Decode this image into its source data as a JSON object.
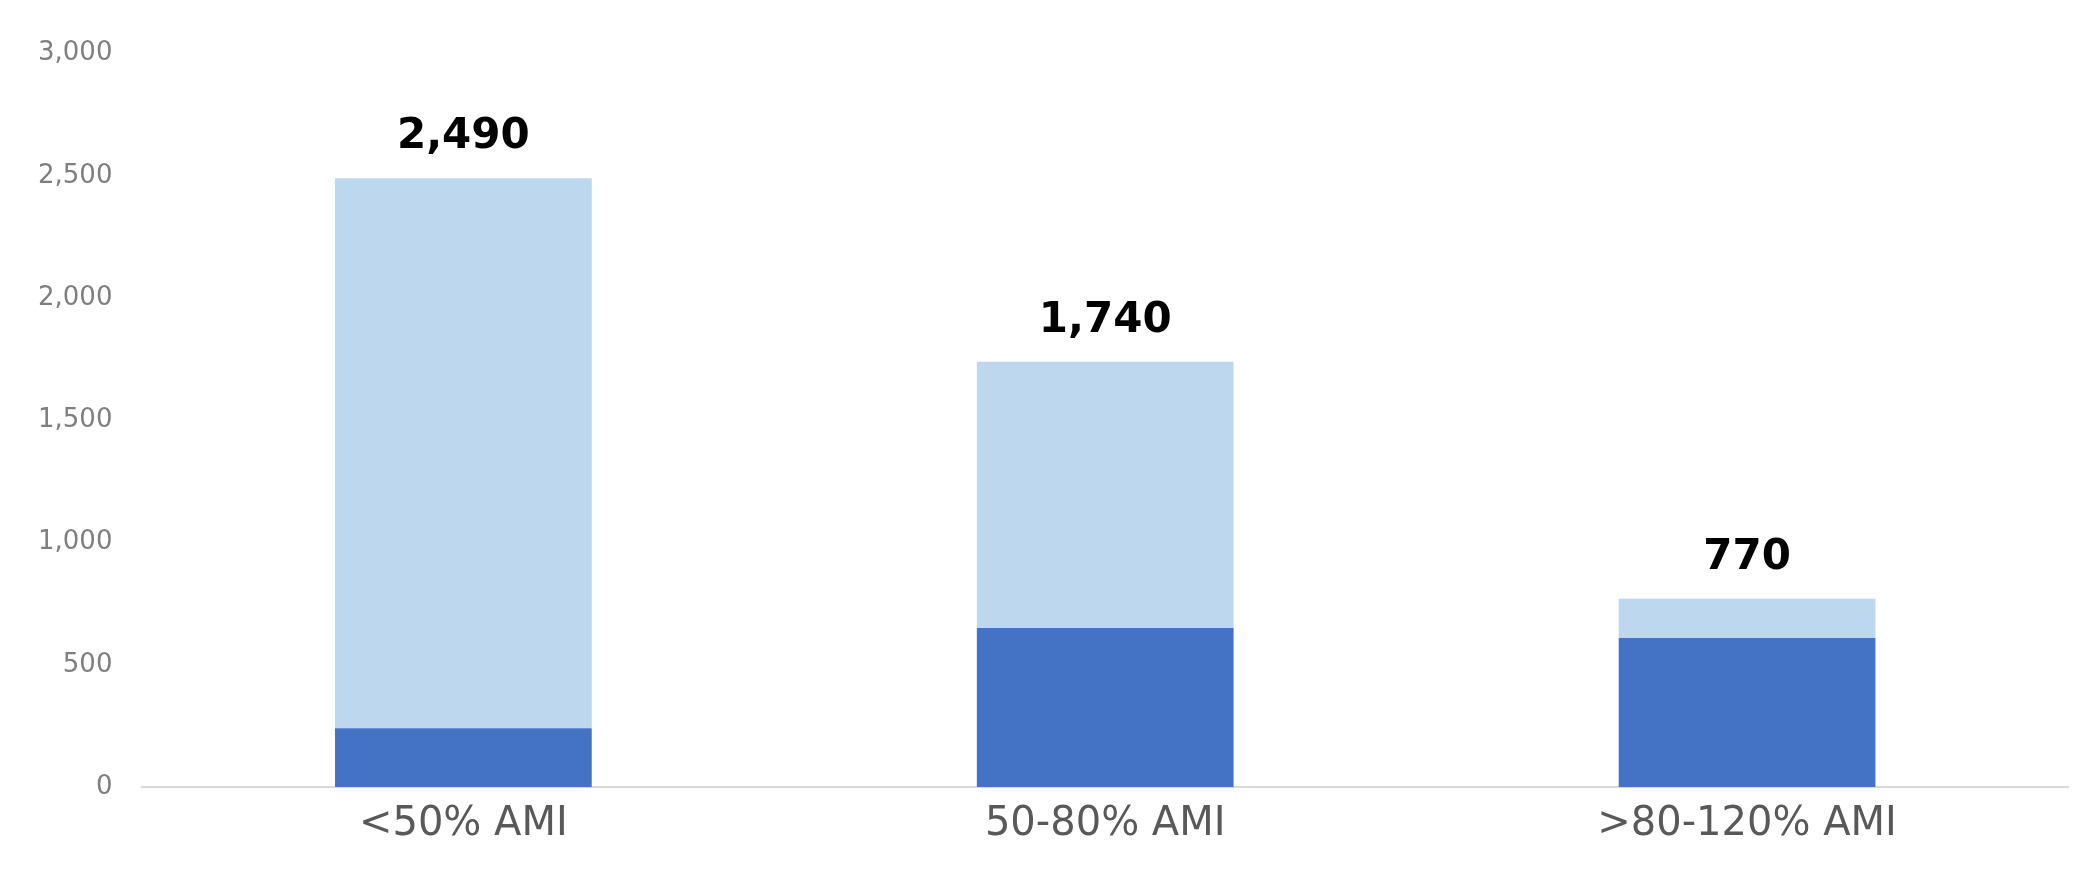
{
  "chart_data": {
    "type": "bar",
    "categories": [
      "<50% AMI",
      "50-80% AMI",
      ">80-120% AMI"
    ],
    "stacked": true,
    "series": [
      {
        "color": "#4472c4",
        "values": [
          240,
          650,
          610
        ]
      },
      {
        "color": "#bdd7ee",
        "values": [
          2250,
          1090,
          160
        ]
      }
    ],
    "totals": [
      "2,490",
      "1,740",
      "770"
    ],
    "ylim": [
      0,
      3000
    ],
    "yticks": [
      {
        "value": 0,
        "label": "0"
      },
      {
        "value": 500,
        "label": "500"
      },
      {
        "value": 1000,
        "label": "1,000"
      },
      {
        "value": 1500,
        "label": "1,500"
      },
      {
        "value": 2000,
        "label": "2,000"
      },
      {
        "value": 2500,
        "label": "2,500"
      },
      {
        "value": 3000,
        "label": "3,000"
      }
    ],
    "grid": false,
    "legend": false
  }
}
